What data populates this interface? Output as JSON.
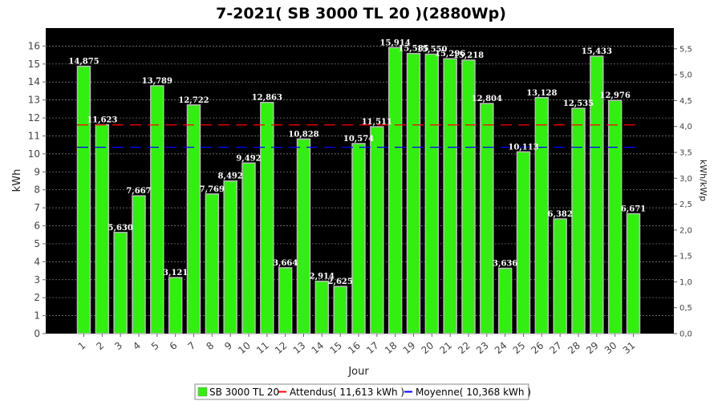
{
  "chart_data": {
    "type": "bar",
    "title": "7-2021( SB 3000 TL 20 )(2880Wp)",
    "xlabel": "Jour",
    "ylabel": "kWh",
    "ylabel_right": "kWh/kWp",
    "ylim": [
      0,
      17
    ],
    "ylim_right": [
      0,
      5.9
    ],
    "yticks": [
      "0",
      "1",
      "2",
      "3",
      "4",
      "5",
      "6",
      "7",
      "8",
      "9",
      "10",
      "11",
      "12",
      "13",
      "14",
      "15",
      "16"
    ],
    "yticks_right": [
      "0,0",
      "0,5",
      "1,0",
      "1,5",
      "2,0",
      "2,5",
      "3,0",
      "3,5",
      "4,0",
      "4,5",
      "5,0",
      "5,5"
    ],
    "categories": [
      "1",
      "2",
      "3",
      "4",
      "5",
      "6",
      "7",
      "8",
      "9",
      "10",
      "11",
      "12",
      "13",
      "14",
      "15",
      "16",
      "17",
      "18",
      "19",
      "20",
      "21",
      "22",
      "23",
      "24",
      "25",
      "26",
      "27",
      "28",
      "29",
      "30",
      "31"
    ],
    "series": [
      {
        "name": "SB 3000 TL 20",
        "values": [
          14.875,
          11.623,
          5.63,
          7.667,
          13.789,
          3.121,
          12.722,
          7.769,
          8.492,
          9.492,
          12.863,
          3.664,
          10.828,
          2.914,
          2.625,
          10.574,
          11.511,
          15.914,
          15.585,
          15.55,
          15.296,
          15.218,
          12.804,
          3.636,
          10.113,
          13.128,
          6.382,
          12.535,
          15.433,
          12.976,
          6.671
        ],
        "labels": [
          "14,875",
          "11,623",
          "5,630",
          "7,667",
          "13,789",
          "3,121",
          "12,722",
          "7,769",
          "8,492",
          "9,492",
          "12,863",
          "3,664",
          "10,828",
          "2,914",
          "2,625",
          "10,574",
          "11,511",
          "15,914",
          "15,585",
          "15,550",
          "15,296",
          "15,218",
          "12,804",
          "3,636",
          "10,113",
          "13,128",
          "6,382",
          "12,535",
          "15,433",
          "12,976",
          "6,671"
        ]
      }
    ],
    "reference_lines": [
      {
        "name": "Attendus",
        "value": 11.613
      },
      {
        "name": "Moyenne",
        "value": 10.368
      }
    ],
    "grid": true,
    "legend": "bottom",
    "colors": {
      "plot_bg": "#000000",
      "bar": "#33ee11",
      "bar_edge": "#bbbbbb",
      "expected_line": "#ff0000",
      "average_line": "#0000ff",
      "grid": "#888888"
    }
  },
  "legend": {
    "series_label": "SB 3000 TL 20",
    "expected_label": "Attendus( 11,613 kWh )",
    "average_label": "Moyenne( 10,368 kWh )"
  }
}
